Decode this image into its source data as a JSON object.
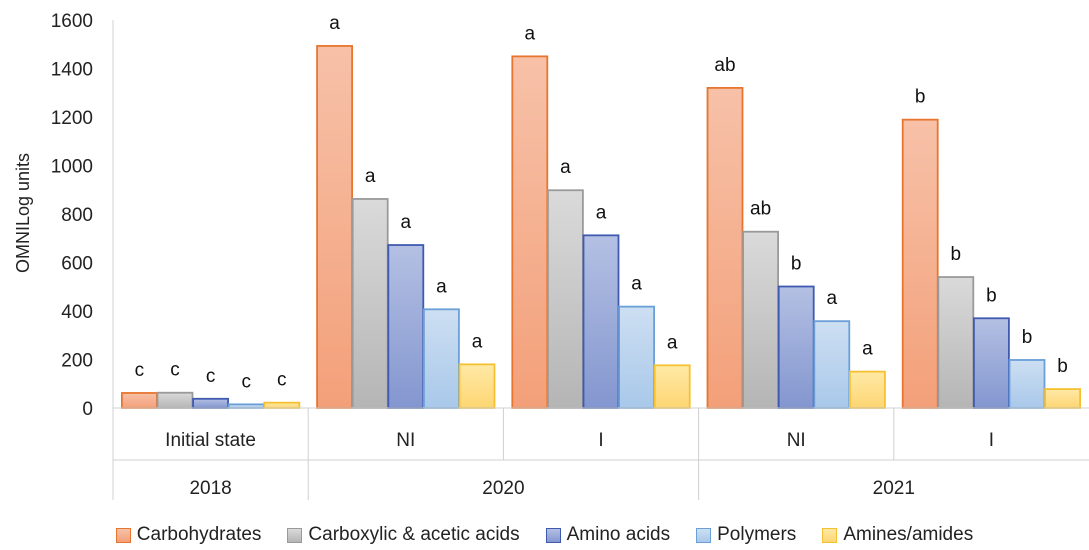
{
  "chart_data": {
    "type": "bar",
    "ylabel": "OMNILog units",
    "ylim": [
      0,
      1600
    ],
    "yticks": [
      0,
      200,
      400,
      600,
      800,
      1000,
      1200,
      1400,
      1600
    ],
    "grid": false,
    "legend_position": "bottom",
    "groups": [
      {
        "year": "2018",
        "categories": [
          {
            "label": "Initial state",
            "values": [
              62,
              63,
              38,
              15,
              22
            ],
            "letters": [
              "c",
              "c",
              "c",
              "c",
              "c"
            ]
          }
        ]
      },
      {
        "year": "2020",
        "categories": [
          {
            "label": "NI",
            "values": [
              1493,
              862,
              672,
              407,
              180
            ],
            "letters": [
              "a",
              "a",
              "a",
              "a",
              "a"
            ]
          },
          {
            "label": "I",
            "values": [
              1450,
              898,
              712,
              418,
              176
            ],
            "letters": [
              "a",
              "a",
              "a",
              "a",
              "a"
            ]
          }
        ]
      },
      {
        "year": "2021",
        "categories": [
          {
            "label": "NI",
            "values": [
              1320,
              727,
              501,
              358,
              150
            ],
            "letters": [
              "ab",
              "ab",
              "b",
              "a",
              "a"
            ]
          },
          {
            "label": "I",
            "values": [
              1189,
              540,
              370,
              198,
              78
            ],
            "letters": [
              "b",
              "b",
              "b",
              "b",
              "b"
            ]
          }
        ]
      }
    ],
    "series": [
      {
        "name": "Carbohydrates",
        "fill_top": "#f7c1a8",
        "fill_bottom": "#f3a079",
        "stroke": "#e8752f"
      },
      {
        "name": "Carboxylic & acetic acids",
        "fill_top": "#dadada",
        "fill_bottom": "#b5b5b5",
        "stroke": "#9a9a9a"
      },
      {
        "name": "Amino acids",
        "fill_top": "#b4c0e3",
        "fill_bottom": "#8396cf",
        "stroke": "#3f5ab0"
      },
      {
        "name": "Polymers",
        "fill_top": "#cddff2",
        "fill_bottom": "#a9c8ea",
        "stroke": "#6a9fd8"
      },
      {
        "name": "Amines/amides",
        "fill_top": "#ffe9a6",
        "fill_bottom": "#fdd673",
        "stroke": "#f5c131"
      }
    ]
  }
}
